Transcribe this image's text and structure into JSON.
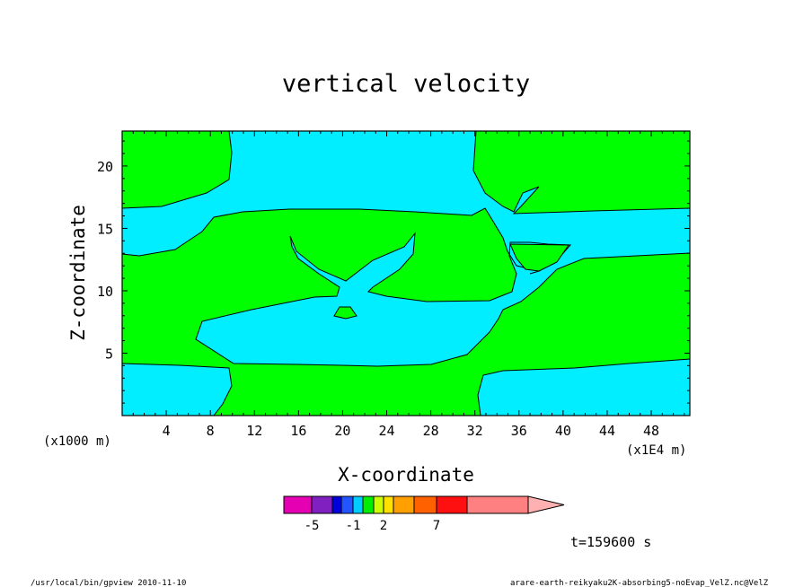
{
  "chart_data": {
    "type": "heatmap",
    "title": "vertical velocity",
    "xlabel": "X-coordinate",
    "ylabel": "Z-coordinate",
    "x_unit_left": "(x1000 m)",
    "x_unit_right": "(x1E4 m)",
    "x_ticks": [
      "4",
      "8",
      "12",
      "16",
      "20",
      "24",
      "28",
      "32",
      "36",
      "40",
      "44",
      "48"
    ],
    "y_ticks": [
      "5",
      "10",
      "15",
      "20"
    ],
    "xlim": [
      0,
      51.5
    ],
    "ylim": [
      0,
      22.8
    ],
    "colors": {
      "positive": "#00ff00",
      "negative": "#00eeff"
    },
    "colorbar": {
      "colors": [
        "#e600b4",
        "#8020c0",
        "#0000dd",
        "#2255ff",
        "#00ccff",
        "#00ee00",
        "#ccff00",
        "#ffe000",
        "#ffa000",
        "#ff6000",
        "#ff1010",
        "#ff8080",
        "#ffb0b0"
      ],
      "labels": [
        "-5",
        "-1",
        "2",
        "7"
      ]
    },
    "time_label": "t=159600 s"
  },
  "footer": {
    "left": "/usr/local/bin/gpview  2010-11-10",
    "right": "arare-earth-reikyaku2K-absorbing5-noEvap_VelZ.nc@VelZ"
  }
}
